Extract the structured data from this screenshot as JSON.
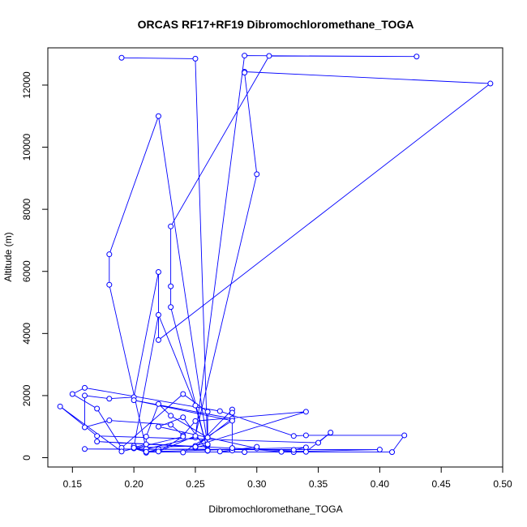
{
  "chart_data": {
    "type": "line",
    "title": "ORCAS RF17+RF19 Dibromochloromethane_TOGA",
    "xlabel": "Dibromochloromethane_TOGA",
    "ylabel": "Altitude (m)",
    "xlim": [
      0.13,
      0.5
    ],
    "ylim": [
      -300,
      13200
    ],
    "x_ticks": [
      0.15,
      0.2,
      0.25,
      0.3,
      0.35,
      0.4,
      0.45,
      0.5
    ],
    "x_tick_labels": [
      "0.15",
      "0.20",
      "0.25",
      "0.30",
      "0.35",
      "0.40",
      "0.45",
      "0.50"
    ],
    "y_ticks": [
      0,
      2000,
      4000,
      6000,
      8000,
      10000,
      12000
    ],
    "y_tick_labels": [
      "0",
      "2000",
      "4000",
      "6000",
      "8000",
      "10000",
      "12000"
    ],
    "grid": false,
    "color": "#0000ff",
    "series": [
      {
        "x": [
          0.19,
          0.25,
          0.26,
          0.26,
          0.22,
          0.18,
          0.18,
          0.21,
          0.25,
          0.29,
          0.43,
          0.31,
          0.23,
          0.23,
          0.23,
          0.26,
          0.24,
          0.22,
          0.3,
          0.3,
          0.27,
          0.29,
          0.33,
          0.21,
          0.41,
          0.42,
          0.34,
          0.33,
          0.27,
          0.16,
          0.15,
          0.17,
          0.19,
          0.24,
          0.26,
          0.26,
          0.23,
          0.22,
          0.21,
          0.21,
          0.2,
          0.2,
          0.21,
          0.22,
          0.21,
          0.2,
          0.22,
          0.25,
          0.26,
          0.26,
          0.25,
          0.28,
          0.28,
          0.28,
          0.28,
          0.32,
          0.4,
          0.16,
          0.33,
          0.34,
          0.21,
          0.2,
          0.2,
          0.25,
          0.34,
          0.25,
          0.24,
          0.23,
          0.18,
          0.16,
          0.16,
          0.18,
          0.2,
          0.22,
          0.22,
          0.49,
          0.29,
          0.29,
          0.3,
          0.25,
          0.22,
          0.24,
          0.19,
          0.14,
          0.17,
          0.35,
          0.36,
          0.34,
          0.17,
          0.25,
          0.28,
          0.2,
          0.28,
          0.24
        ],
        "y": [
          12880,
          12850,
          250,
          400,
          11000,
          6550,
          5570,
          280,
          650,
          12950,
          12920,
          12940,
          7450,
          5520,
          4850,
          220,
          1300,
          1000,
          300,
          350,
          200,
          180,
          180,
          180,
          180,
          720,
          720,
          700,
          1500,
          2250,
          2050,
          1580,
          320,
          2050,
          1480,
          650,
          1350,
          1730,
          680,
          430,
          330,
          300,
          180,
          270,
          160,
          350,
          4600,
          1680,
          230,
          430,
          320,
          1550,
          1450,
          230,
          310,
          190,
          260,
          280,
          250,
          330,
          190,
          380,
          320,
          380,
          1480,
          1180,
          720,
          1060,
          1200,
          980,
          2000,
          1900,
          1950,
          5980,
          3790,
          12050,
          12430,
          12400,
          9130,
          700,
          200,
          680,
          200,
          1650,
          700,
          480,
          810,
          190,
          520,
          350,
          1260,
          1850,
          1190,
          170
        ]
      }
    ]
  }
}
